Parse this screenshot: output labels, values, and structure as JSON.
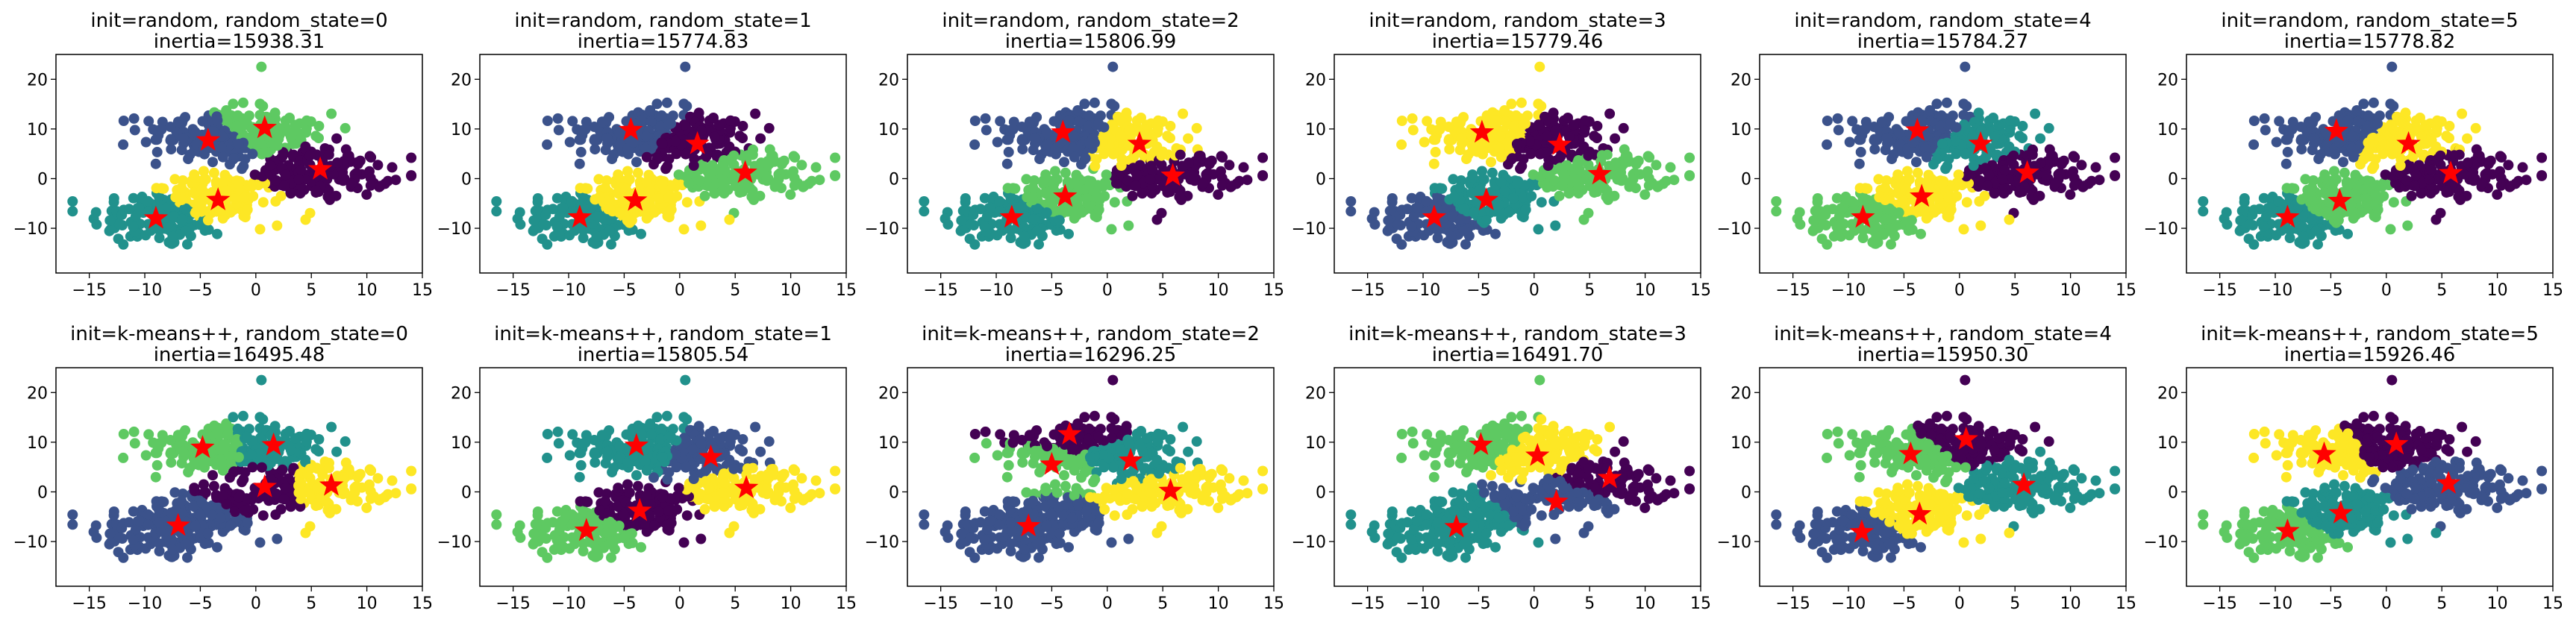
{
  "colors": {
    "viridis": [
      "#440154",
      "#3b528b",
      "#21918c",
      "#5ec962",
      "#fde725"
    ],
    "centroid": "#ff0000",
    "axes": "#000000",
    "background": "#ffffff"
  },
  "chart_data": [
    {
      "type": "scatter",
      "title": "init=random, random_state=0",
      "subtitle": "inertia=15938.31",
      "xlim": [
        -18,
        15
      ],
      "ylim": [
        -19,
        25
      ],
      "xticks": [
        "−15",
        "−10",
        "−5",
        "0",
        "5",
        "10",
        "15"
      ],
      "yticks": [
        "−10",
        "0",
        "10",
        "20"
      ],
      "grid": false,
      "centers": [
        [
          -4.3,
          7.7
        ],
        [
          0.8,
          10.2
        ],
        [
          -9.0,
          -8.0
        ],
        [
          -3.4,
          -4.3
        ],
        [
          5.8,
          1.9
        ]
      ],
      "center_colors": [
        "#3b528b",
        "#5ec962",
        "#21918c",
        "#fde725",
        "#440154"
      ]
    },
    {
      "type": "scatter",
      "title": "init=random, random_state=1",
      "subtitle": "inertia=15774.83",
      "xlim": [
        -18,
        15
      ],
      "ylim": [
        -19,
        25
      ],
      "xticks": [
        "−15",
        "−10",
        "−5",
        "0",
        "5",
        "10",
        "15"
      ],
      "yticks": [
        "−10",
        "0",
        "10",
        "20"
      ],
      "grid": false,
      "centers": [
        [
          -4.4,
          9.8
        ],
        [
          1.6,
          7.0
        ],
        [
          -9.0,
          -7.8
        ],
        [
          -4.0,
          -4.4
        ],
        [
          5.9,
          1.2
        ]
      ],
      "center_colors": [
        "#3b528b",
        "#440154",
        "#21918c",
        "#fde725",
        "#5ec962"
      ]
    },
    {
      "type": "scatter",
      "title": "init=random, random_state=2",
      "subtitle": "inertia=15806.99",
      "xlim": [
        -18,
        15
      ],
      "ylim": [
        -19,
        25
      ],
      "xticks": [
        "−15",
        "−10",
        "−5",
        "0",
        "5",
        "10",
        "15"
      ],
      "yticks": [
        "−10",
        "0",
        "10",
        "20"
      ],
      "grid": false,
      "centers": [
        [
          -4.0,
          9.3
        ],
        [
          2.9,
          7.0
        ],
        [
          -8.6,
          -7.8
        ],
        [
          -3.8,
          -3.6
        ],
        [
          5.9,
          0.6
        ]
      ],
      "center_colors": [
        "#3b528b",
        "#fde725",
        "#21918c",
        "#5ec962",
        "#440154"
      ]
    },
    {
      "type": "scatter",
      "title": "init=random, random_state=3",
      "subtitle": "inertia=15779.46",
      "xlim": [
        -18,
        15
      ],
      "ylim": [
        -19,
        25
      ],
      "xticks": [
        "−15",
        "−10",
        "−5",
        "0",
        "5",
        "10",
        "15"
      ],
      "yticks": [
        "−10",
        "0",
        "10",
        "20"
      ],
      "grid": false,
      "centers": [
        [
          -4.7,
          9.3
        ],
        [
          2.3,
          6.8
        ],
        [
          -9.0,
          -7.8
        ],
        [
          -4.3,
          -4.3
        ],
        [
          5.9,
          0.9
        ]
      ],
      "center_colors": [
        "#fde725",
        "#440154",
        "#3b528b",
        "#21918c",
        "#5ec962"
      ]
    },
    {
      "type": "scatter",
      "title": "init=random, random_state=4",
      "subtitle": "inertia=15784.27",
      "xlim": [
        -18,
        15
      ],
      "ylim": [
        -19,
        25
      ],
      "xticks": [
        "−15",
        "−10",
        "−5",
        "0",
        "5",
        "10",
        "15"
      ],
      "yticks": [
        "−10",
        "0",
        "10",
        "20"
      ],
      "grid": false,
      "centers": [
        [
          -3.8,
          9.7
        ],
        [
          1.9,
          7.0
        ],
        [
          -8.7,
          -7.8
        ],
        [
          -3.4,
          -3.6
        ],
        [
          6.1,
          1.2
        ]
      ],
      "center_colors": [
        "#3b528b",
        "#21918c",
        "#5ec962",
        "#fde725",
        "#440154"
      ]
    },
    {
      "type": "scatter",
      "title": "init=random, random_state=5",
      "subtitle": "inertia=15778.82",
      "xlim": [
        -18,
        15
      ],
      "ylim": [
        -19,
        25
      ],
      "xticks": [
        "−15",
        "−10",
        "−5",
        "0",
        "5",
        "10",
        "15"
      ],
      "yticks": [
        "−10",
        "0",
        "10",
        "20"
      ],
      "grid": false,
      "centers": [
        [
          -4.5,
          9.6
        ],
        [
          2.0,
          7.0
        ],
        [
          -8.9,
          -7.8
        ],
        [
          -4.2,
          -4.5
        ],
        [
          5.8,
          1.1
        ]
      ],
      "center_colors": [
        "#3b528b",
        "#fde725",
        "#21918c",
        "#5ec962",
        "#440154"
      ]
    },
    {
      "type": "scatter",
      "title": "init=k-means++, random_state=0",
      "subtitle": "inertia=16495.48",
      "xlim": [
        -18,
        15
      ],
      "ylim": [
        -19,
        25
      ],
      "xticks": [
        "−15",
        "−10",
        "−5",
        "0",
        "5",
        "10",
        "15"
      ],
      "yticks": [
        "−10",
        "0",
        "10",
        "20"
      ],
      "grid": false,
      "centers": [
        [
          -4.8,
          8.9
        ],
        [
          1.6,
          9.4
        ],
        [
          -7.0,
          -6.8
        ],
        [
          0.8,
          1.0
        ],
        [
          6.8,
          1.3
        ]
      ],
      "center_colors": [
        "#5ec962",
        "#21918c",
        "#3b528b",
        "#440154",
        "#fde725"
      ]
    },
    {
      "type": "scatter",
      "title": "init=k-means++, random_state=1",
      "subtitle": "inertia=15805.54",
      "xlim": [
        -18,
        15
      ],
      "ylim": [
        -19,
        25
      ],
      "xticks": [
        "−15",
        "−10",
        "−5",
        "0",
        "5",
        "10",
        "15"
      ],
      "yticks": [
        "−10",
        "0",
        "10",
        "20"
      ],
      "grid": false,
      "centers": [
        [
          -3.9,
          9.3
        ],
        [
          2.8,
          7.0
        ],
        [
          -8.4,
          -7.8
        ],
        [
          -3.6,
          -3.8
        ],
        [
          6.0,
          0.8
        ]
      ],
      "center_colors": [
        "#21918c",
        "#3b528b",
        "#5ec962",
        "#440154",
        "#fde725"
      ]
    },
    {
      "type": "scatter",
      "title": "init=k-means++, random_state=2",
      "subtitle": "inertia=16296.25",
      "xlim": [
        -18,
        15
      ],
      "ylim": [
        -19,
        25
      ],
      "xticks": [
        "−15",
        "−10",
        "−5",
        "0",
        "5",
        "10",
        "15"
      ],
      "yticks": [
        "−10",
        "0",
        "10",
        "20"
      ],
      "grid": false,
      "centers": [
        [
          -3.4,
          11.6
        ],
        [
          2.1,
          6.3
        ],
        [
          -7.1,
          -6.9
        ],
        [
          -5.0,
          5.5
        ],
        [
          5.7,
          0.2
        ]
      ],
      "center_colors": [
        "#440154",
        "#21918c",
        "#3b528b",
        "#5ec962",
        "#fde725"
      ]
    },
    {
      "type": "scatter",
      "title": "init=k-means++, random_state=3",
      "subtitle": "inertia=16491.70",
      "xlim": [
        -18,
        15
      ],
      "ylim": [
        -19,
        25
      ],
      "xticks": [
        "−15",
        "−10",
        "−5",
        "0",
        "5",
        "10",
        "15"
      ],
      "yticks": [
        "−10",
        "0",
        "10",
        "20"
      ],
      "grid": false,
      "centers": [
        [
          -4.8,
          9.5
        ],
        [
          0.3,
          7.3
        ],
        [
          -7.0,
          -7.1
        ],
        [
          2.0,
          -2.0
        ],
        [
          6.8,
          2.8
        ]
      ],
      "center_colors": [
        "#5ec962",
        "#fde725",
        "#21918c",
        "#3b528b",
        "#440154"
      ]
    },
    {
      "type": "scatter",
      "title": "init=k-means++, random_state=4",
      "subtitle": "inertia=15950.30",
      "xlim": [
        -18,
        15
      ],
      "ylim": [
        -19,
        25
      ],
      "xticks": [
        "−15",
        "−10",
        "−5",
        "0",
        "5",
        "10",
        "15"
      ],
      "yticks": [
        "−10",
        "0",
        "10",
        "20"
      ],
      "grid": false,
      "centers": [
        [
          -4.4,
          7.6
        ],
        [
          0.6,
          10.6
        ],
        [
          -8.8,
          -8.1
        ],
        [
          -3.6,
          -4.5
        ],
        [
          5.8,
          1.4
        ]
      ],
      "center_colors": [
        "#5ec962",
        "#440154",
        "#3b528b",
        "#fde725",
        "#21918c"
      ]
    },
    {
      "type": "scatter",
      "title": "init=k-means++, random_state=5",
      "subtitle": "inertia=15926.46",
      "xlim": [
        -18,
        15
      ],
      "ylim": [
        -19,
        25
      ],
      "xticks": [
        "−15",
        "−10",
        "−5",
        "0",
        "5",
        "10",
        "15"
      ],
      "yticks": [
        "−10",
        "0",
        "10",
        "20"
      ],
      "grid": false,
      "centers": [
        [
          -5.6,
          7.6
        ],
        [
          0.9,
          9.6
        ],
        [
          -8.9,
          -7.9
        ],
        [
          -4.1,
          -4.3
        ],
        [
          5.6,
          1.7
        ]
      ],
      "center_colors": [
        "#fde725",
        "#440154",
        "#5ec962",
        "#21918c",
        "#3b528b"
      ]
    }
  ]
}
